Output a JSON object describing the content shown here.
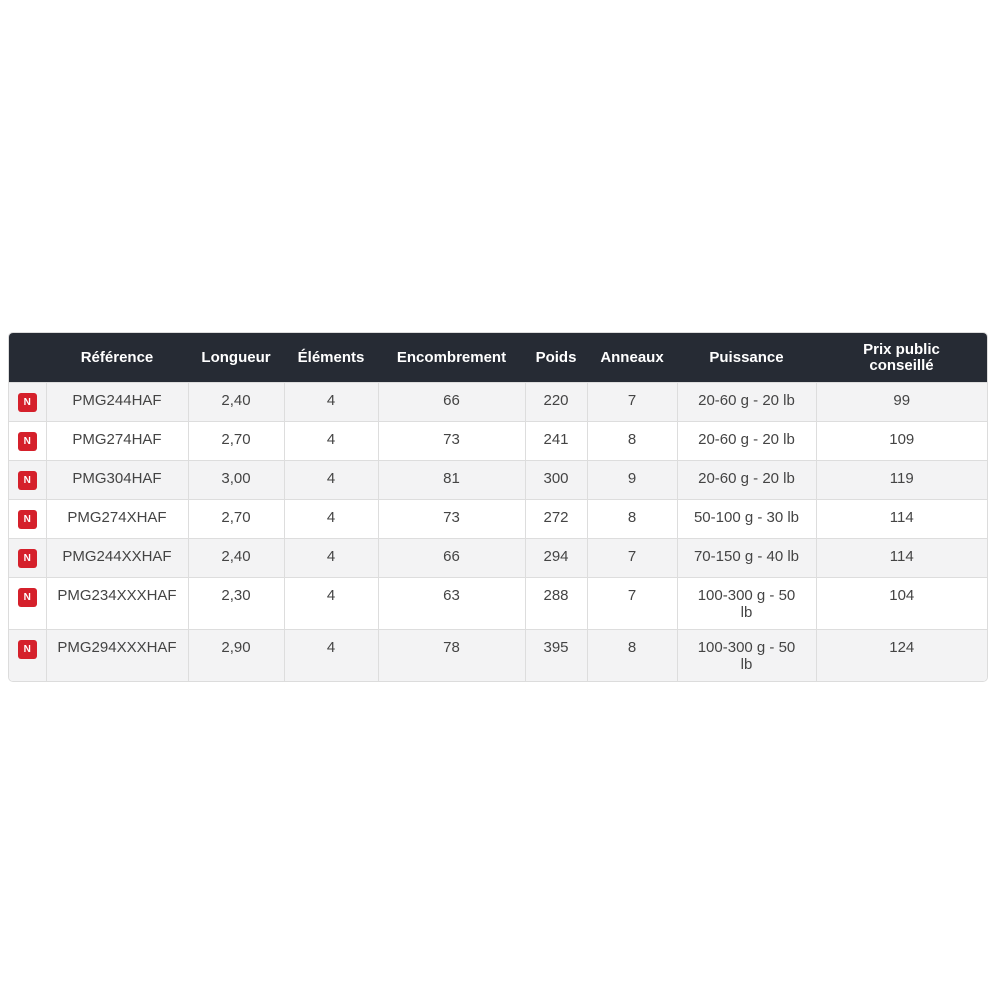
{
  "headers": [
    "",
    "Référence",
    "Longueur",
    "Éléments",
    "Encombrement",
    "Poids",
    "Anneaux",
    "Puissance",
    "Prix public conseillé"
  ],
  "badge_label": "N",
  "badge_color": "#d5202b",
  "rows": [
    {
      "ref": "PMG244HAF",
      "longueur": "2,40",
      "elements": "4",
      "encombrement": "66",
      "poids": "220",
      "anneaux": "7",
      "puissance": "20-60 g - 20 lb",
      "prix": "99"
    },
    {
      "ref": "PMG274HAF",
      "longueur": "2,70",
      "elements": "4",
      "encombrement": "73",
      "poids": "241",
      "anneaux": "8",
      "puissance": "20-60 g - 20 lb",
      "prix": "109"
    },
    {
      "ref": "PMG304HAF",
      "longueur": "3,00",
      "elements": "4",
      "encombrement": "81",
      "poids": "300",
      "anneaux": "9",
      "puissance": "20-60 g - 20 lb",
      "prix": "119"
    },
    {
      "ref": "PMG274XHAF",
      "longueur": "2,70",
      "elements": "4",
      "encombrement": "73",
      "poids": "272",
      "anneaux": "8",
      "puissance": "50-100 g - 30 lb",
      "prix": "114"
    },
    {
      "ref": "PMG244XXHAF",
      "longueur": "2,40",
      "elements": "4",
      "encombrement": "66",
      "poids": "294",
      "anneaux": "7",
      "puissance": "70-150 g - 40 lb",
      "prix": "114"
    },
    {
      "ref": "PMG234XXXHAF",
      "longueur": "2,30",
      "elements": "4",
      "encombrement": "63",
      "poids": "288",
      "anneaux": "7",
      "puissance": "100-300 g - 50 lb",
      "prix": "104"
    },
    {
      "ref": "PMG294XXXHAF",
      "longueur": "2,90",
      "elements": "4",
      "encombrement": "78",
      "poids": "395",
      "anneaux": "8",
      "puissance": "100-300 g - 50 lb",
      "prix": "124"
    }
  ]
}
